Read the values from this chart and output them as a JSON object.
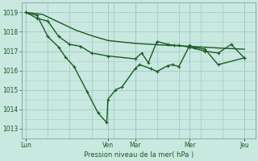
{
  "background_color": "#c8e8e0",
  "grid_color": "#a8cccc",
  "line_color": "#1a5c20",
  "ylabel": "Pression niveau de la mer( hPa )",
  "ylim": [
    1012.5,
    1019.5
  ],
  "yticks": [
    1013,
    1014,
    1015,
    1016,
    1017,
    1018,
    1019
  ],
  "day_labels": [
    "Lun",
    "Ven",
    "Mar",
    "Mer",
    "Jeu"
  ],
  "day_positions": [
    0.0,
    0.375,
    0.5,
    0.75,
    1.0
  ],
  "series1_x": [
    0.0,
    0.075,
    0.15,
    0.225,
    0.3,
    0.375,
    0.5,
    0.575,
    0.65,
    0.75,
    0.825,
    0.9,
    1.0
  ],
  "series1_y": [
    1019.0,
    1018.9,
    1018.5,
    1018.1,
    1017.8,
    1017.55,
    1017.4,
    1017.35,
    1017.3,
    1017.25,
    1017.2,
    1017.15,
    1017.1
  ],
  "series2_x": [
    0.0,
    0.05,
    0.1,
    0.15,
    0.2,
    0.25,
    0.3,
    0.375,
    0.5,
    0.53,
    0.56,
    0.6,
    0.65,
    0.68,
    0.7,
    0.75,
    0.82,
    0.88,
    0.94,
    1.0
  ],
  "series2_y": [
    1019.0,
    1018.7,
    1018.55,
    1017.75,
    1017.35,
    1017.25,
    1016.9,
    1016.75,
    1016.6,
    1016.9,
    1016.4,
    1017.5,
    1017.35,
    1017.3,
    1017.3,
    1017.2,
    1017.0,
    1016.9,
    1017.35,
    1016.65
  ],
  "series3_x": [
    0.0,
    0.05,
    0.1,
    0.15,
    0.18,
    0.22,
    0.28,
    0.33,
    0.37,
    0.375,
    0.41,
    0.44,
    0.5,
    0.52,
    0.57,
    0.6,
    0.65,
    0.67,
    0.7,
    0.75,
    0.77,
    0.82,
    0.88,
    1.0
  ],
  "series3_y": [
    1019.0,
    1018.85,
    1017.75,
    1017.2,
    1016.7,
    1016.2,
    1014.9,
    1013.8,
    1013.3,
    1014.5,
    1015.0,
    1015.15,
    1016.1,
    1016.3,
    1016.1,
    1015.95,
    1016.25,
    1016.3,
    1016.2,
    1017.3,
    1017.2,
    1017.1,
    1016.3,
    1016.65
  ]
}
